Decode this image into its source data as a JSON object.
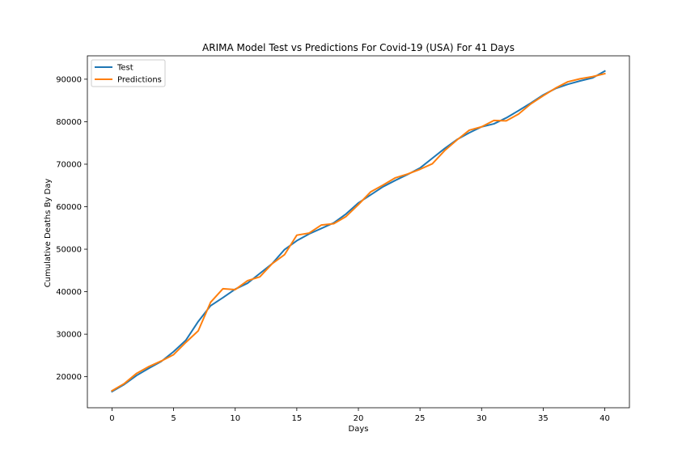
{
  "chart_data": {
    "type": "line",
    "title": "ARIMA Model Test vs Predictions For Covid-19 (USA) For 41 Days",
    "xlabel": "Days",
    "ylabel": "Cumulative Deaths By Day",
    "xlim": [
      -2,
      42
    ],
    "ylim": [
      12700,
      95500
    ],
    "xticks": [
      0,
      5,
      10,
      15,
      20,
      25,
      30,
      35,
      40
    ],
    "yticks": [
      20000,
      30000,
      40000,
      50000,
      60000,
      70000,
      80000,
      90000
    ],
    "grid": false,
    "legend_position": "upper-left",
    "x": [
      0,
      1,
      2,
      3,
      4,
      5,
      6,
      7,
      8,
      9,
      10,
      11,
      12,
      13,
      14,
      15,
      16,
      17,
      18,
      19,
      20,
      21,
      22,
      23,
      24,
      25,
      26,
      27,
      28,
      29,
      30,
      31,
      32,
      33,
      34,
      35,
      36,
      37,
      38,
      39,
      40
    ],
    "series": [
      {
        "name": "Test",
        "color": "#1f77b4",
        "values": [
          16500,
          18200,
          20300,
          22000,
          23600,
          25900,
          28600,
          33000,
          36700,
          38600,
          40600,
          42000,
          44300,
          46600,
          49900,
          52000,
          53600,
          54900,
          56200,
          58300,
          60900,
          62800,
          64700,
          66200,
          67600,
          69100,
          71400,
          73700,
          75800,
          77400,
          78800,
          79500,
          80900,
          82600,
          84400,
          86300,
          87800,
          88800,
          89600,
          90300,
          91900
        ]
      },
      {
        "name": "Predictions",
        "color": "#ff7f0e",
        "values": [
          16700,
          18400,
          20800,
          22400,
          23700,
          25200,
          28100,
          30800,
          37500,
          40700,
          40500,
          42600,
          43500,
          46600,
          48700,
          53300,
          53800,
          55700,
          56000,
          57700,
          60500,
          63500,
          65100,
          66800,
          67700,
          68800,
          70100,
          73200,
          75700,
          78000,
          78800,
          80300,
          80200,
          81800,
          84200,
          86100,
          87900,
          89400,
          90100,
          90600,
          91300
        ]
      }
    ]
  }
}
